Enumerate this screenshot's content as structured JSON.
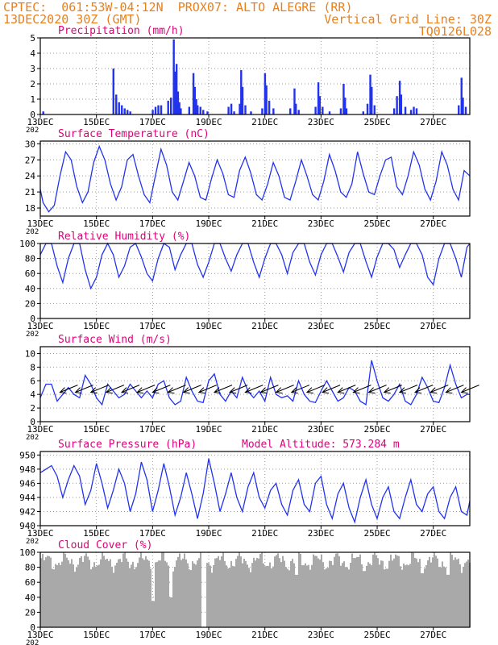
{
  "header": {
    "line1": "CPTEC:  061:53W-04:12N  PROX07: ALTO ALEGRE (RR)",
    "line2": "13DEC2020 30Z (GMT)",
    "grid_note": "Vertical Grid Line: 30Z",
    "code": "TQ0126L028"
  },
  "colors": {
    "header": "#e8801e",
    "title": "#e0007a",
    "line": "#2233ee",
    "cloud": "#a9a9a9"
  },
  "x_axis": {
    "ticks": [
      "13DEC",
      "15DEC",
      "17DEC",
      "19DEC",
      "21DEC",
      "23DEC",
      "25DEC",
      "27DEC"
    ],
    "tick_days": [
      0,
      2,
      4,
      6,
      8,
      10,
      12,
      14
    ],
    "year_stub": "202",
    "range_days": [
      0,
      15.3
    ]
  },
  "chart_data": [
    {
      "id": "precip",
      "type": "bar",
      "title": "Precipitation (mm/h)",
      "ylim": [
        0,
        5
      ],
      "yticks": [
        0,
        1,
        2,
        3,
        4,
        5
      ],
      "events": [
        [
          0.1,
          0.2
        ],
        [
          2.6,
          3.0
        ],
        [
          2.7,
          1.3
        ],
        [
          2.8,
          0.8
        ],
        [
          2.9,
          0.6
        ],
        [
          3.0,
          0.4
        ],
        [
          3.1,
          0.3
        ],
        [
          3.2,
          0.2
        ],
        [
          4.0,
          0.3
        ],
        [
          4.1,
          0.5
        ],
        [
          4.2,
          0.6
        ],
        [
          4.3,
          0.6
        ],
        [
          4.55,
          0.9
        ],
        [
          4.65,
          1.1
        ],
        [
          4.75,
          4.9
        ],
        [
          4.8,
          2.8
        ],
        [
          4.85,
          3.3
        ],
        [
          4.9,
          1.5
        ],
        [
          4.95,
          0.8
        ],
        [
          5.0,
          0.4
        ],
        [
          5.3,
          0.5
        ],
        [
          5.45,
          2.7
        ],
        [
          5.5,
          1.8
        ],
        [
          5.55,
          1.0
        ],
        [
          5.6,
          0.6
        ],
        [
          5.7,
          0.5
        ],
        [
          5.8,
          0.3
        ],
        [
          5.95,
          0.2
        ],
        [
          6.7,
          0.5
        ],
        [
          6.8,
          0.7
        ],
        [
          6.9,
          0.2
        ],
        [
          7.1,
          0.7
        ],
        [
          7.15,
          2.9
        ],
        [
          7.2,
          1.8
        ],
        [
          7.3,
          0.6
        ],
        [
          7.5,
          0.2
        ],
        [
          7.9,
          0.4
        ],
        [
          8.0,
          2.7
        ],
        [
          8.05,
          1.9
        ],
        [
          8.15,
          0.9
        ],
        [
          8.3,
          0.4
        ],
        [
          8.9,
          0.4
        ],
        [
          9.05,
          1.7
        ],
        [
          9.1,
          0.7
        ],
        [
          9.2,
          0.3
        ],
        [
          9.8,
          0.5
        ],
        [
          9.9,
          2.1
        ],
        [
          9.95,
          1.2
        ],
        [
          10.05,
          0.5
        ],
        [
          10.3,
          0.2
        ],
        [
          10.7,
          0.4
        ],
        [
          10.8,
          2.0
        ],
        [
          10.85,
          1.1
        ],
        [
          10.9,
          0.4
        ],
        [
          11.5,
          0.2
        ],
        [
          11.65,
          0.7
        ],
        [
          11.75,
          2.6
        ],
        [
          11.8,
          1.8
        ],
        [
          11.9,
          0.6
        ],
        [
          12.6,
          0.4
        ],
        [
          12.7,
          1.2
        ],
        [
          12.8,
          2.2
        ],
        [
          12.85,
          1.3
        ],
        [
          13.0,
          0.5
        ],
        [
          13.2,
          0.3
        ],
        [
          13.3,
          0.5
        ],
        [
          13.4,
          0.4
        ],
        [
          14.9,
          0.6
        ],
        [
          15.0,
          2.4
        ],
        [
          15.05,
          1.1
        ],
        [
          15.15,
          0.5
        ]
      ]
    },
    {
      "id": "temp",
      "type": "line",
      "title": "Surface Temperature (nC)",
      "ylim": [
        16.5,
        30.5
      ],
      "yticks": [
        18,
        21,
        24,
        27,
        30
      ],
      "x": [
        0,
        0.1,
        0.3,
        0.5,
        0.7,
        0.9,
        1.1,
        1.3,
        1.5,
        1.7,
        1.9,
        2.1,
        2.3,
        2.5,
        2.7,
        2.9,
        3.1,
        3.3,
        3.5,
        3.7,
        3.9,
        4.1,
        4.3,
        4.5,
        4.7,
        4.9,
        5.1,
        5.3,
        5.5,
        5.7,
        5.9,
        6.1,
        6.3,
        6.5,
        6.7,
        6.9,
        7.1,
        7.3,
        7.5,
        7.7,
        7.9,
        8.1,
        8.3,
        8.5,
        8.7,
        8.9,
        9.1,
        9.3,
        9.5,
        9.7,
        9.9,
        10.1,
        10.3,
        10.5,
        10.7,
        10.9,
        11.1,
        11.3,
        11.5,
        11.7,
        11.9,
        12.1,
        12.3,
        12.5,
        12.7,
        12.9,
        13.1,
        13.3,
        13.5,
        13.7,
        13.9,
        14.1,
        14.3,
        14.5,
        14.7,
        14.9,
        15.1,
        15.3
      ],
      "y": [
        21.5,
        19,
        17.3,
        18.5,
        24,
        28.5,
        27,
        22,
        19,
        21,
        26.5,
        29.5,
        27,
        22.5,
        19.5,
        22,
        27,
        28,
        24,
        20.5,
        19,
        24,
        29,
        26,
        21,
        19.5,
        23,
        26.5,
        24,
        20,
        19.5,
        23.5,
        27,
        24.5,
        20.5,
        20,
        25,
        27.5,
        24.5,
        20.5,
        19.5,
        22.5,
        26.5,
        24,
        20,
        19.5,
        23,
        27,
        24,
        20.5,
        19.5,
        23,
        28,
        25,
        21,
        20,
        22.5,
        28.5,
        24.5,
        21,
        20.5,
        24,
        27,
        27.5,
        22,
        20.5,
        24,
        28.5,
        26,
        21.5,
        19.5,
        23,
        28.5,
        26,
        21.5,
        19.5,
        25,
        24
      ]
    },
    {
      "id": "rh",
      "type": "line",
      "title": "Relative Humidity (%)",
      "ylim": [
        0,
        100
      ],
      "yticks": [
        0,
        20,
        40,
        60,
        80,
        100
      ],
      "x": [
        0,
        0.2,
        0.4,
        0.6,
        0.8,
        1.0,
        1.2,
        1.4,
        1.6,
        1.8,
        2.0,
        2.2,
        2.4,
        2.6,
        2.8,
        3.0,
        3.2,
        3.4,
        3.6,
        3.8,
        4.0,
        4.2,
        4.4,
        4.6,
        4.8,
        5.0,
        5.2,
        5.4,
        5.6,
        5.8,
        6.0,
        6.2,
        6.4,
        6.6,
        6.8,
        7.0,
        7.2,
        7.4,
        7.6,
        7.8,
        8.0,
        8.2,
        8.4,
        8.6,
        8.8,
        9.0,
        9.2,
        9.4,
        9.6,
        9.8,
        10.0,
        10.2,
        10.4,
        10.6,
        10.8,
        11.0,
        11.2,
        11.4,
        11.6,
        11.8,
        12.0,
        12.2,
        12.4,
        12.6,
        12.8,
        13.0,
        13.2,
        13.4,
        13.6,
        13.8,
        14.0,
        14.2,
        14.4,
        14.6,
        14.8,
        15.0,
        15.2,
        15.3
      ],
      "y": [
        85,
        100,
        100,
        70,
        48,
        80,
        100,
        100,
        65,
        40,
        55,
        85,
        100,
        85,
        55,
        70,
        95,
        100,
        82,
        60,
        50,
        80,
        100,
        95,
        65,
        85,
        100,
        100,
        72,
        55,
        75,
        100,
        100,
        80,
        63,
        85,
        100,
        100,
        75,
        55,
        80,
        100,
        100,
        85,
        60,
        88,
        100,
        100,
        75,
        58,
        85,
        100,
        100,
        82,
        62,
        88,
        100,
        100,
        76,
        55,
        82,
        100,
        100,
        92,
        68,
        85,
        100,
        100,
        85,
        55,
        45,
        80,
        100,
        100,
        80,
        55,
        95,
        100
      ]
    },
    {
      "id": "wind",
      "type": "line",
      "title": "Surface Wind (m/s)",
      "ylim": [
        0,
        11
      ],
      "yticks": [
        0,
        2,
        4,
        6,
        8,
        10
      ],
      "x": [
        0,
        0.2,
        0.4,
        0.6,
        0.8,
        1.0,
        1.2,
        1.4,
        1.6,
        1.8,
        2.0,
        2.2,
        2.4,
        2.6,
        2.8,
        3.0,
        3.2,
        3.4,
        3.6,
        3.8,
        4.0,
        4.2,
        4.4,
        4.6,
        4.8,
        5.0,
        5.2,
        5.4,
        5.6,
        5.8,
        6.0,
        6.2,
        6.4,
        6.6,
        6.8,
        7.0,
        7.2,
        7.4,
        7.6,
        7.8,
        8.0,
        8.2,
        8.4,
        8.6,
        8.8,
        9.0,
        9.2,
        9.4,
        9.6,
        9.8,
        10.0,
        10.2,
        10.4,
        10.6,
        10.8,
        11.0,
        11.2,
        11.4,
        11.6,
        11.8,
        12.0,
        12.2,
        12.4,
        12.6,
        12.8,
        13.0,
        13.2,
        13.4,
        13.6,
        13.8,
        14.0,
        14.2,
        14.4,
        14.6,
        14.8,
        15.0,
        15.2,
        15.3
      ],
      "y": [
        3.5,
        5.5,
        5.5,
        3,
        4,
        5,
        4,
        3.5,
        6.8,
        5.5,
        3.5,
        2.5,
        5.5,
        4.5,
        3.5,
        4,
        5.5,
        4.5,
        3.5,
        4.5,
        3.5,
        5.5,
        6,
        3.5,
        2.5,
        3,
        6.5,
        4.5,
        3,
        2.8,
        6,
        7,
        4,
        3,
        4.5,
        3.5,
        6.5,
        4.5,
        3.5,
        4.5,
        3,
        6.5,
        4,
        3.5,
        3.8,
        3,
        6,
        4,
        3,
        2.8,
        4.5,
        6,
        4.5,
        3,
        3.5,
        5,
        4.5,
        3,
        2.5,
        9,
        6,
        3.5,
        3,
        4,
        5.5,
        3,
        2.5,
        4,
        6.5,
        5,
        3,
        2.8,
        5,
        8.3,
        5.5,
        3.5,
        4,
        4
      ]
    },
    {
      "id": "pres",
      "type": "line",
      "title": "Surface Pressure (hPa)",
      "note": "Model Altitude: 573.284  m",
      "ylim": [
        940,
        950.5
      ],
      "yticks": [
        940,
        942,
        944,
        946,
        948,
        950
      ],
      "x": [
        0,
        0.2,
        0.4,
        0.6,
        0.8,
        1.0,
        1.2,
        1.4,
        1.6,
        1.8,
        2.0,
        2.2,
        2.4,
        2.6,
        2.8,
        3.0,
        3.2,
        3.4,
        3.6,
        3.8,
        4.0,
        4.2,
        4.4,
        4.6,
        4.8,
        5.0,
        5.2,
        5.4,
        5.6,
        5.8,
        6.0,
        6.2,
        6.4,
        6.6,
        6.8,
        7.0,
        7.2,
        7.4,
        7.6,
        7.8,
        8.0,
        8.2,
        8.4,
        8.6,
        8.8,
        9.0,
        9.2,
        9.4,
        9.6,
        9.8,
        10.0,
        10.2,
        10.4,
        10.6,
        10.8,
        11.0,
        11.2,
        11.4,
        11.6,
        11.8,
        12.0,
        12.2,
        12.4,
        12.6,
        12.8,
        13.0,
        13.2,
        13.4,
        13.6,
        13.8,
        14.0,
        14.2,
        14.4,
        14.6,
        14.8,
        15.0,
        15.2,
        15.3
      ],
      "y": [
        947.5,
        948,
        948.5,
        947,
        944,
        946.5,
        948.5,
        947,
        943,
        945,
        948.8,
        946,
        942.5,
        945,
        948,
        946,
        942,
        944.5,
        949,
        946.5,
        942,
        945,
        948.8,
        945.5,
        941.5,
        944,
        947.5,
        944.5,
        941,
        944.5,
        949.5,
        946,
        942,
        944.5,
        947.5,
        944,
        942,
        945.5,
        947.5,
        944,
        942.5,
        945,
        946,
        943,
        941.5,
        945,
        946.5,
        943,
        942,
        946,
        947,
        943,
        941,
        944.5,
        946,
        942.5,
        940.5,
        944,
        946.5,
        943,
        941,
        944,
        945.5,
        942,
        941,
        944,
        946.5,
        943,
        942,
        944.5,
        945.5,
        942,
        941,
        944,
        945.5,
        942,
        941.5,
        943.5
      ]
    },
    {
      "id": "cloud",
      "type": "area",
      "title": "Cloud Cover (%)",
      "ylim": [
        0,
        100
      ],
      "yticks": [
        0,
        20,
        40,
        60,
        80,
        100
      ],
      "base": 88,
      "dips": [
        [
          4.0,
          35
        ],
        [
          4.6,
          40
        ],
        [
          5.8,
          0
        ],
        [
          9.1,
          70
        ],
        [
          11.5,
          75
        ],
        [
          12.3,
          78
        ],
        [
          13.6,
          72
        ],
        [
          14.5,
          70
        ]
      ]
    }
  ]
}
